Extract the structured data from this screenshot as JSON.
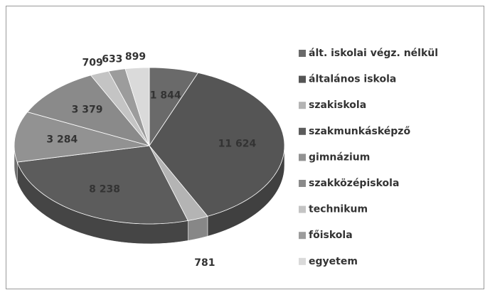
{
  "chart_data": {
    "type": "pie3d",
    "categories": [
      "ált. iskolai végz. nélkül",
      "általános iskola",
      "szakiskola",
      "szakmunkásképző",
      "gimnázium",
      "szakközépiskola",
      "technikum",
      "főiskola",
      "egyetem"
    ],
    "values": [
      1844,
      11624,
      781,
      8238,
      3284,
      3379,
      709,
      633,
      899
    ],
    "value_labels": [
      "1 844",
      "11 624",
      "781",
      "8 238",
      "3 284",
      "3 379",
      "709",
      "633",
      "899"
    ],
    "colors": [
      "#6a6a6a",
      "#555555",
      "#b4b4b4",
      "#5c5c5c",
      "#929292",
      "#8a8a8a",
      "#c4c4c4",
      "#9c9c9c",
      "#dadada"
    ],
    "legend": "right"
  }
}
